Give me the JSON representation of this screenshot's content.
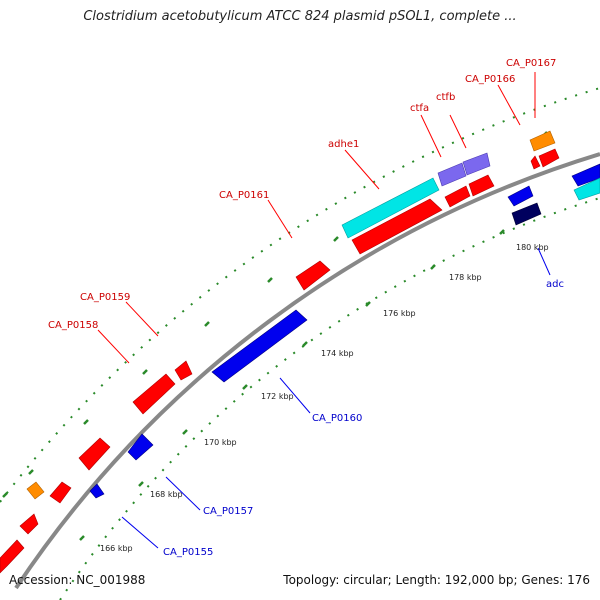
{
  "title": "Clostridium acetobutylicum ATCC 824 plasmid pSOL1, complete ...",
  "footer": {
    "accession": "Accession: NC_001988",
    "summary": "Topology: circular; Length: 192,000 bp; Genes: 176"
  },
  "colors": {
    "backbone": "#888888",
    "tick": "#2a8a2a",
    "forward_cds": "#ff0000",
    "reverse_cds": "#0000ee",
    "dark_reverse_cds": "#00005e",
    "orange_feature": "#ff8c00",
    "cyan_feature": "#00e5e5",
    "purple_feature": "#7b68ee",
    "forward_label": "#cc0000",
    "reverse_label": "#0000cc"
  },
  "kbp_labels": [
    "166 kbp",
    "168 kbp",
    "170 kbp",
    "172 kbp",
    "174 kbp",
    "176 kbp",
    "178 kbp",
    "180 kbp"
  ],
  "gene_labels": {
    "forward": [
      "CA_P0167",
      "CA_P0166",
      "ctfb",
      "ctfa",
      "adhe1",
      "CA_P0161",
      "CA_P0159",
      "CA_P0158"
    ],
    "reverse": [
      "adc",
      "CA_P0160",
      "CA_P0157",
      "CA_P0155"
    ]
  }
}
